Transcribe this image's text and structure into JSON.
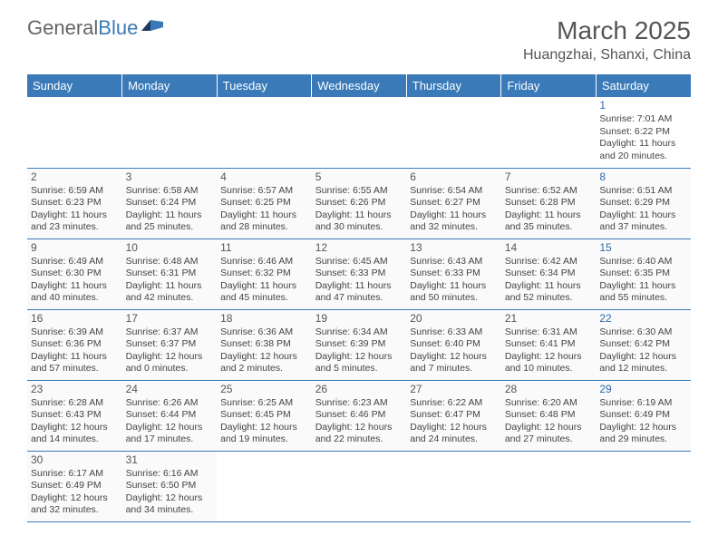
{
  "logo": {
    "text1": "General",
    "text2": "Blue"
  },
  "title": "March 2025",
  "location": "Huangzhai, Shanxi, China",
  "colors": {
    "header_bg": "#3a7ab8",
    "border": "#3a7ab8",
    "text": "#444444"
  },
  "day_headers": [
    "Sunday",
    "Monday",
    "Tuesday",
    "Wednesday",
    "Thursday",
    "Friday",
    "Saturday"
  ],
  "weeks": [
    [
      null,
      null,
      null,
      null,
      null,
      null,
      {
        "n": "1",
        "sr": "Sunrise: 7:01 AM",
        "ss": "Sunset: 6:22 PM",
        "d1": "Daylight: 11 hours",
        "d2": "and 20 minutes."
      }
    ],
    [
      {
        "n": "2",
        "sr": "Sunrise: 6:59 AM",
        "ss": "Sunset: 6:23 PM",
        "d1": "Daylight: 11 hours",
        "d2": "and 23 minutes."
      },
      {
        "n": "3",
        "sr": "Sunrise: 6:58 AM",
        "ss": "Sunset: 6:24 PM",
        "d1": "Daylight: 11 hours",
        "d2": "and 25 minutes."
      },
      {
        "n": "4",
        "sr": "Sunrise: 6:57 AM",
        "ss": "Sunset: 6:25 PM",
        "d1": "Daylight: 11 hours",
        "d2": "and 28 minutes."
      },
      {
        "n": "5",
        "sr": "Sunrise: 6:55 AM",
        "ss": "Sunset: 6:26 PM",
        "d1": "Daylight: 11 hours",
        "d2": "and 30 minutes."
      },
      {
        "n": "6",
        "sr": "Sunrise: 6:54 AM",
        "ss": "Sunset: 6:27 PM",
        "d1": "Daylight: 11 hours",
        "d2": "and 32 minutes."
      },
      {
        "n": "7",
        "sr": "Sunrise: 6:52 AM",
        "ss": "Sunset: 6:28 PM",
        "d1": "Daylight: 11 hours",
        "d2": "and 35 minutes."
      },
      {
        "n": "8",
        "sr": "Sunrise: 6:51 AM",
        "ss": "Sunset: 6:29 PM",
        "d1": "Daylight: 11 hours",
        "d2": "and 37 minutes."
      }
    ],
    [
      {
        "n": "9",
        "sr": "Sunrise: 6:49 AM",
        "ss": "Sunset: 6:30 PM",
        "d1": "Daylight: 11 hours",
        "d2": "and 40 minutes."
      },
      {
        "n": "10",
        "sr": "Sunrise: 6:48 AM",
        "ss": "Sunset: 6:31 PM",
        "d1": "Daylight: 11 hours",
        "d2": "and 42 minutes."
      },
      {
        "n": "11",
        "sr": "Sunrise: 6:46 AM",
        "ss": "Sunset: 6:32 PM",
        "d1": "Daylight: 11 hours",
        "d2": "and 45 minutes."
      },
      {
        "n": "12",
        "sr": "Sunrise: 6:45 AM",
        "ss": "Sunset: 6:33 PM",
        "d1": "Daylight: 11 hours",
        "d2": "and 47 minutes."
      },
      {
        "n": "13",
        "sr": "Sunrise: 6:43 AM",
        "ss": "Sunset: 6:33 PM",
        "d1": "Daylight: 11 hours",
        "d2": "and 50 minutes."
      },
      {
        "n": "14",
        "sr": "Sunrise: 6:42 AM",
        "ss": "Sunset: 6:34 PM",
        "d1": "Daylight: 11 hours",
        "d2": "and 52 minutes."
      },
      {
        "n": "15",
        "sr": "Sunrise: 6:40 AM",
        "ss": "Sunset: 6:35 PM",
        "d1": "Daylight: 11 hours",
        "d2": "and 55 minutes."
      }
    ],
    [
      {
        "n": "16",
        "sr": "Sunrise: 6:39 AM",
        "ss": "Sunset: 6:36 PM",
        "d1": "Daylight: 11 hours",
        "d2": "and 57 minutes."
      },
      {
        "n": "17",
        "sr": "Sunrise: 6:37 AM",
        "ss": "Sunset: 6:37 PM",
        "d1": "Daylight: 12 hours",
        "d2": "and 0 minutes."
      },
      {
        "n": "18",
        "sr": "Sunrise: 6:36 AM",
        "ss": "Sunset: 6:38 PM",
        "d1": "Daylight: 12 hours",
        "d2": "and 2 minutes."
      },
      {
        "n": "19",
        "sr": "Sunrise: 6:34 AM",
        "ss": "Sunset: 6:39 PM",
        "d1": "Daylight: 12 hours",
        "d2": "and 5 minutes."
      },
      {
        "n": "20",
        "sr": "Sunrise: 6:33 AM",
        "ss": "Sunset: 6:40 PM",
        "d1": "Daylight: 12 hours",
        "d2": "and 7 minutes."
      },
      {
        "n": "21",
        "sr": "Sunrise: 6:31 AM",
        "ss": "Sunset: 6:41 PM",
        "d1": "Daylight: 12 hours",
        "d2": "and 10 minutes."
      },
      {
        "n": "22",
        "sr": "Sunrise: 6:30 AM",
        "ss": "Sunset: 6:42 PM",
        "d1": "Daylight: 12 hours",
        "d2": "and 12 minutes."
      }
    ],
    [
      {
        "n": "23",
        "sr": "Sunrise: 6:28 AM",
        "ss": "Sunset: 6:43 PM",
        "d1": "Daylight: 12 hours",
        "d2": "and 14 minutes."
      },
      {
        "n": "24",
        "sr": "Sunrise: 6:26 AM",
        "ss": "Sunset: 6:44 PM",
        "d1": "Daylight: 12 hours",
        "d2": "and 17 minutes."
      },
      {
        "n": "25",
        "sr": "Sunrise: 6:25 AM",
        "ss": "Sunset: 6:45 PM",
        "d1": "Daylight: 12 hours",
        "d2": "and 19 minutes."
      },
      {
        "n": "26",
        "sr": "Sunrise: 6:23 AM",
        "ss": "Sunset: 6:46 PM",
        "d1": "Daylight: 12 hours",
        "d2": "and 22 minutes."
      },
      {
        "n": "27",
        "sr": "Sunrise: 6:22 AM",
        "ss": "Sunset: 6:47 PM",
        "d1": "Daylight: 12 hours",
        "d2": "and 24 minutes."
      },
      {
        "n": "28",
        "sr": "Sunrise: 6:20 AM",
        "ss": "Sunset: 6:48 PM",
        "d1": "Daylight: 12 hours",
        "d2": "and 27 minutes."
      },
      {
        "n": "29",
        "sr": "Sunrise: 6:19 AM",
        "ss": "Sunset: 6:49 PM",
        "d1": "Daylight: 12 hours",
        "d2": "and 29 minutes."
      }
    ],
    [
      {
        "n": "30",
        "sr": "Sunrise: 6:17 AM",
        "ss": "Sunset: 6:49 PM",
        "d1": "Daylight: 12 hours",
        "d2": "and 32 minutes."
      },
      {
        "n": "31",
        "sr": "Sunrise: 6:16 AM",
        "ss": "Sunset: 6:50 PM",
        "d1": "Daylight: 12 hours",
        "d2": "and 34 minutes."
      },
      null,
      null,
      null,
      null,
      null
    ]
  ]
}
